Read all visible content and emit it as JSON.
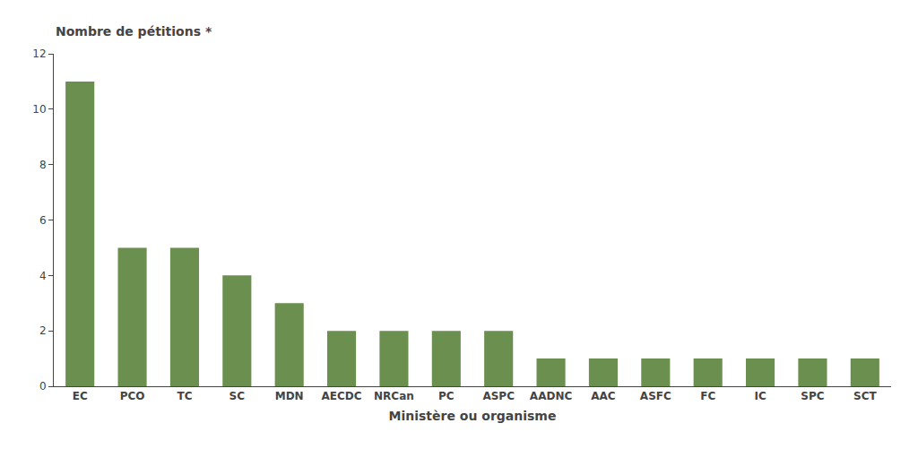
{
  "chart_data": {
    "type": "bar",
    "categories": [
      "EC",
      "PCO",
      "TC",
      "SC",
      "MDN",
      "AECDC",
      "NRCan",
      "PC",
      "ASPC",
      "AADNC",
      "AAC",
      "ASFC",
      "FC",
      "IC",
      "SPC",
      "SCT"
    ],
    "values": [
      11,
      5,
      5,
      4,
      3,
      2,
      2,
      2,
      2,
      1,
      1,
      1,
      1,
      1,
      1,
      1
    ],
    "color": "#6b8f4e",
    "ylabel": "Nombre de pétitions *",
    "xlabel": "Ministère ou organisme",
    "ylim": [
      0,
      12
    ],
    "yticks": [
      0,
      2,
      4,
      6,
      8,
      10,
      12
    ],
    "grid": false
  }
}
